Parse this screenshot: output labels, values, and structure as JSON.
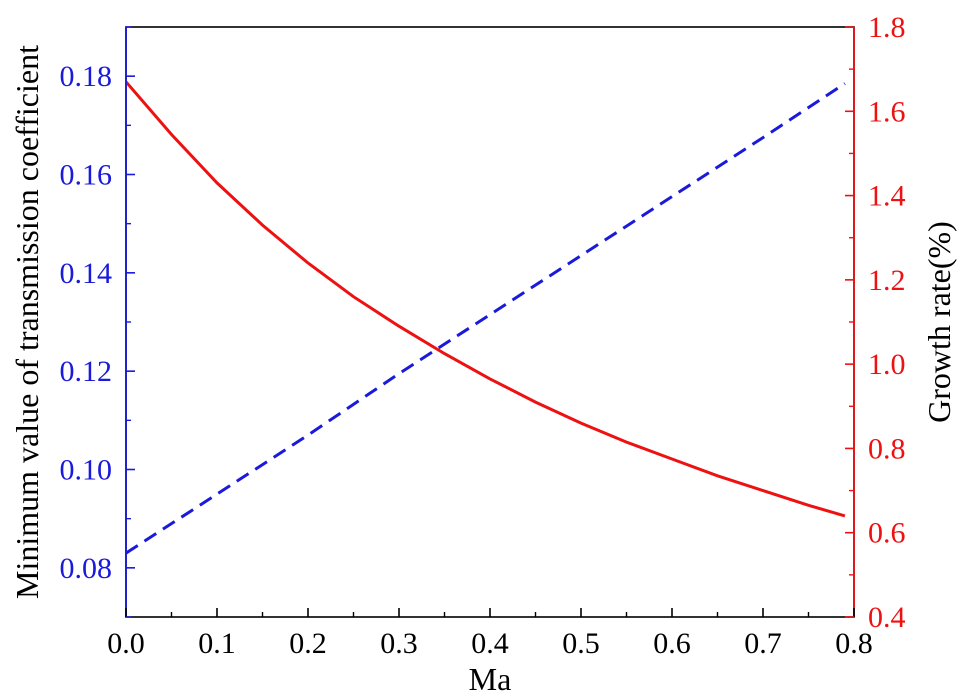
{
  "chart_data": {
    "type": "line",
    "xlabel": "Ma",
    "ylabel_left": "Minimum value of transmission coefficient",
    "ylabel_right": "Growth rate(%)",
    "xlim": [
      0.0,
      0.8
    ],
    "ylim_left": [
      0.07,
      0.19
    ],
    "ylim_right": [
      0.4,
      1.8
    ],
    "x_ticks": [
      "0.0",
      "0.1",
      "0.2",
      "0.3",
      "0.4",
      "0.5",
      "0.6",
      "0.7",
      "0.8"
    ],
    "y_left_ticks": [
      "0.08",
      "0.10",
      "0.12",
      "0.14",
      "0.16",
      "0.18"
    ],
    "y_right_ticks": [
      "0.4",
      "0.6",
      "0.8",
      "1.0",
      "1.2",
      "1.4",
      "1.6",
      "1.8"
    ],
    "grid": false,
    "colors": {
      "left_axis": "#1a1adb",
      "right_axis": "#ee1111",
      "frame": "#000000"
    },
    "series": [
      {
        "axis": "left",
        "style": "dashed",
        "color": "#1a1adb",
        "x": [
          0.0,
          0.1,
          0.2,
          0.3,
          0.4,
          0.5,
          0.6,
          0.7,
          0.79
        ],
        "y": [
          0.083,
          0.095,
          0.107,
          0.1195,
          0.1315,
          0.1435,
          0.1555,
          0.1675,
          0.1785
        ]
      },
      {
        "axis": "right",
        "style": "solid",
        "color": "#ee1111",
        "x": [
          0.0,
          0.05,
          0.1,
          0.15,
          0.2,
          0.25,
          0.3,
          0.35,
          0.4,
          0.45,
          0.5,
          0.55,
          0.6,
          0.65,
          0.7,
          0.75,
          0.79
        ],
        "y": [
          1.67,
          1.545,
          1.43,
          1.33,
          1.24,
          1.16,
          1.09,
          1.025,
          0.965,
          0.91,
          0.86,
          0.815,
          0.775,
          0.735,
          0.7,
          0.665,
          0.64
        ]
      }
    ]
  }
}
